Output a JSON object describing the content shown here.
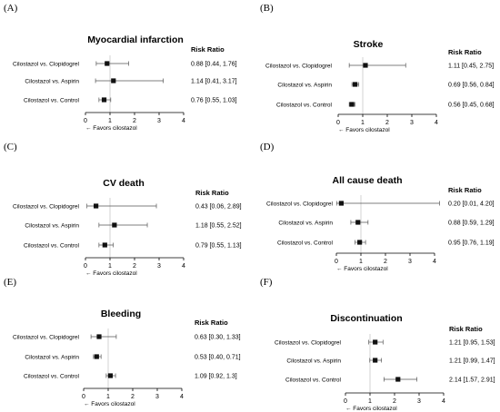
{
  "panel_labels": [
    "(A)",
    "(B)",
    "(C)",
    "(D)",
    "(E)",
    "(F)"
  ],
  "chart_data": [
    {
      "type": "forest",
      "panel": "(A)",
      "title": "Myocardial infarction",
      "ratio_header": "Risk Ratio",
      "xlabel": "← Favors cilostazol",
      "xticks": [
        "0",
        "1",
        "2",
        "3",
        "4"
      ],
      "xlim": [
        0,
        4
      ],
      "rows": [
        {
          "label": "Cilostazol vs. Clopidogrel",
          "rr": 0.88,
          "lo": 0.44,
          "hi": 1.76,
          "text": "0.88 [0.44, 1.76]"
        },
        {
          "label": "Cilostazol vs. Aspirin",
          "rr": 1.14,
          "lo": 0.41,
          "hi": 3.17,
          "text": "1.14 [0.41, 3.17]"
        },
        {
          "label": "Cilostazol vs. Control",
          "rr": 0.76,
          "lo": 0.55,
          "hi": 1.03,
          "text": "0.76 [0.55, 1.03]"
        }
      ]
    },
    {
      "type": "forest",
      "panel": "(B)",
      "title": "Stroke",
      "ratio_header": "Risk Ratio",
      "xlabel": "← Favors cilostazol",
      "xticks": [
        "0",
        "1",
        "2",
        "3",
        "4"
      ],
      "xlim": [
        0,
        4
      ],
      "rows": [
        {
          "label": "Cilostazol vs. Clopidogrel",
          "rr": 1.11,
          "lo": 0.45,
          "hi": 2.75,
          "text": "1.11 [0.45, 2.75]"
        },
        {
          "label": "Cilostazol vs. Aspirin",
          "rr": 0.69,
          "lo": 0.56,
          "hi": 0.84,
          "text": "0.69 [0.56, 0.84]"
        },
        {
          "label": "Cilostazol vs. Control",
          "rr": 0.56,
          "lo": 0.45,
          "hi": 0.68,
          "text": "0.56 [0.45, 0.68]"
        }
      ]
    },
    {
      "type": "forest",
      "panel": "(C)",
      "title": "CV death",
      "ratio_header": "Risk Ratio",
      "xlabel": "← Favors cilostazol",
      "xticks": [
        "0",
        "1",
        "2",
        "3",
        "4"
      ],
      "xlim": [
        0,
        4
      ],
      "rows": [
        {
          "label": "Cilostazol vs. Clopidogrel",
          "rr": 0.43,
          "lo": 0.06,
          "hi": 2.89,
          "text": "0.43 [0.06, 2.89]"
        },
        {
          "label": "Cilostazol vs. Aspirin",
          "rr": 1.18,
          "lo": 0.55,
          "hi": 2.52,
          "text": "1.18 [0.55, 2.52]"
        },
        {
          "label": "Cilostazol vs. Control",
          "rr": 0.79,
          "lo": 0.55,
          "hi": 1.13,
          "text": "0.79 [0.55, 1.13]"
        }
      ]
    },
    {
      "type": "forest",
      "panel": "(D)",
      "title": "All cause death",
      "ratio_header": "Risk Ratio",
      "xlabel": "← Favors cilostazol",
      "xticks": [
        "0",
        "1",
        "2",
        "3",
        "4"
      ],
      "xlim": [
        0,
        4
      ],
      "rows": [
        {
          "label": "Cilostazol vs. Clopidogrel",
          "rr": 0.2,
          "lo": 0.01,
          "hi": 4.2,
          "text": "0.20 [0.01, 4.20]"
        },
        {
          "label": "Cilostazol vs. Aspirin",
          "rr": 0.88,
          "lo": 0.59,
          "hi": 1.29,
          "text": "0.88 [0.59, 1.29]"
        },
        {
          "label": "Cilostazol vs. Control",
          "rr": 0.95,
          "lo": 0.76,
          "hi": 1.19,
          "text": "0.95 [0.76, 1.19]"
        }
      ]
    },
    {
      "type": "forest",
      "panel": "(E)",
      "title": "Bleeding",
      "ratio_header": "Risk Ratio",
      "xlabel": "← Favors cilostazol",
      "xticks": [
        "0",
        "1",
        "2",
        "3",
        "4"
      ],
      "xlim": [
        0,
        4
      ],
      "rows": [
        {
          "label": "Cilostazol vs. Clopidogrel",
          "rr": 0.63,
          "lo": 0.3,
          "hi": 1.33,
          "text": "0.63 [0.30, 1.33]"
        },
        {
          "label": "Cilostazol vs. Aspirin",
          "rr": 0.53,
          "lo": 0.4,
          "hi": 0.71,
          "text": "0.53 [0.40, 0.71]"
        },
        {
          "label": "Cilostazol vs. Control",
          "rr": 1.09,
          "lo": 0.92,
          "hi": 1.3,
          "text": "1.09 [0.92, 1.3]"
        }
      ]
    },
    {
      "type": "forest",
      "panel": "(F)",
      "title": "Discontinuation",
      "ratio_header": "Risk Ratio",
      "xlabel": "← Favors cilostazol",
      "xticks": [
        "0",
        "1",
        "2",
        "3",
        "4"
      ],
      "xlim": [
        0,
        4
      ],
      "rows": [
        {
          "label": "Cilostazol vs. Clopidogrel",
          "rr": 1.21,
          "lo": 0.95,
          "hi": 1.53,
          "text": "1.21 [0.95, 1.53]"
        },
        {
          "label": "Cilostazol vs. Aspirin",
          "rr": 1.21,
          "lo": 0.99,
          "hi": 1.47,
          "text": "1.21 [0.99, 1.47]"
        },
        {
          "label": "Cilostazol vs. Control",
          "rr": 2.14,
          "lo": 1.57,
          "hi": 2.91,
          "text": "2.14 [1.57, 2.91]"
        }
      ]
    }
  ]
}
